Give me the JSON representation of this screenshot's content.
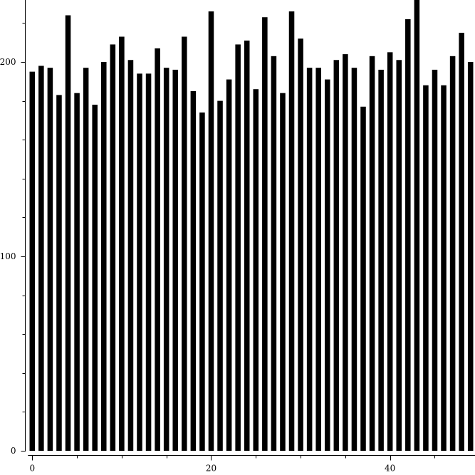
{
  "chart_data": {
    "type": "bar",
    "title": "",
    "xlabel": "",
    "ylabel": "",
    "x": [
      0,
      1,
      2,
      3,
      4,
      5,
      6,
      7,
      8,
      9,
      10,
      11,
      12,
      13,
      14,
      15,
      16,
      17,
      18,
      19,
      20,
      21,
      22,
      23,
      24,
      25,
      26,
      27,
      28,
      29,
      30,
      31,
      32,
      33,
      34,
      35,
      36,
      37,
      38,
      39,
      40,
      41,
      42,
      43,
      44,
      45,
      46,
      47,
      48,
      49
    ],
    "values": [
      195,
      198,
      197,
      183,
      224,
      184,
      197,
      178,
      200,
      209,
      213,
      201,
      194,
      194,
      207,
      197,
      196,
      213,
      185,
      174,
      226,
      180,
      191,
      209,
      211,
      186,
      223,
      203,
      184,
      226,
      212,
      197,
      197,
      191,
      201,
      204,
      197,
      177,
      203,
      196,
      205,
      201,
      222,
      235,
      188,
      196,
      188,
      203,
      215,
      200
    ],
    "xlim": [
      -0.5,
      49.5
    ],
    "ylim": [
      0,
      232
    ],
    "xticks": [
      0,
      20,
      40
    ],
    "xtick_labels": [
      "0",
      "20",
      "40"
    ],
    "x_minor_step": 5,
    "yticks": [
      0,
      100,
      200
    ],
    "ytick_labels": [
      "0",
      "100",
      "200"
    ],
    "y_minor_step": 20,
    "bar_color": "#000000",
    "grid": false,
    "legend": "none"
  }
}
